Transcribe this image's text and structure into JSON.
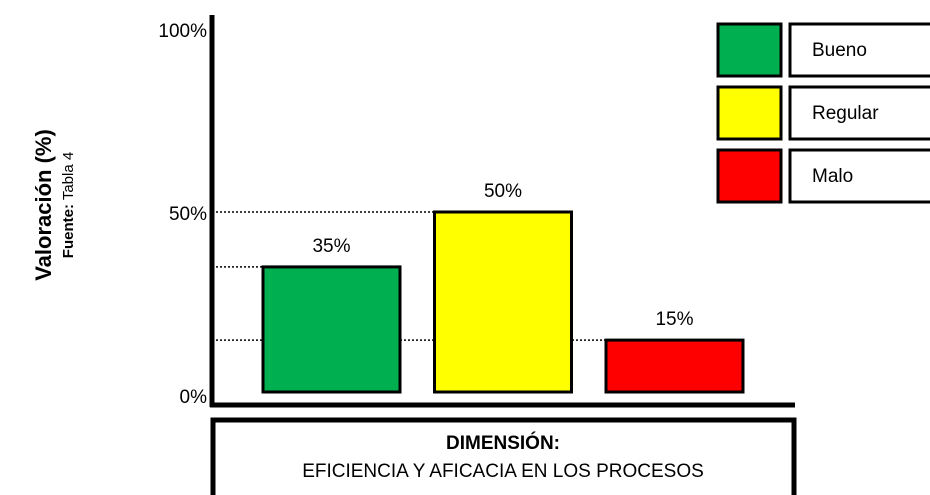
{
  "chart_data": {
    "type": "bar",
    "y_label": "Valoración (%)",
    "source_label": "Fuente:",
    "source": "Tabla 4",
    "x_label": "DIMENSIÓN:",
    "x_sublabel": "EFICIENCIA Y AFICACIA EN LOS PROCESOS",
    "categories": [
      "Bueno",
      "Regular",
      "Malo"
    ],
    "values": [
      35,
      50,
      15
    ],
    "value_labels": [
      "35%",
      "50%",
      "15%"
    ],
    "colors": [
      "#00b050",
      "#ffff00",
      "#ff0000"
    ],
    "ylim": [
      0,
      100
    ],
    "yticks": [
      {
        "value": 0,
        "label": "0%"
      },
      {
        "value": 50,
        "label": "50%"
      },
      {
        "value": 100,
        "label": "100%"
      }
    ],
    "legend": "top-right"
  }
}
